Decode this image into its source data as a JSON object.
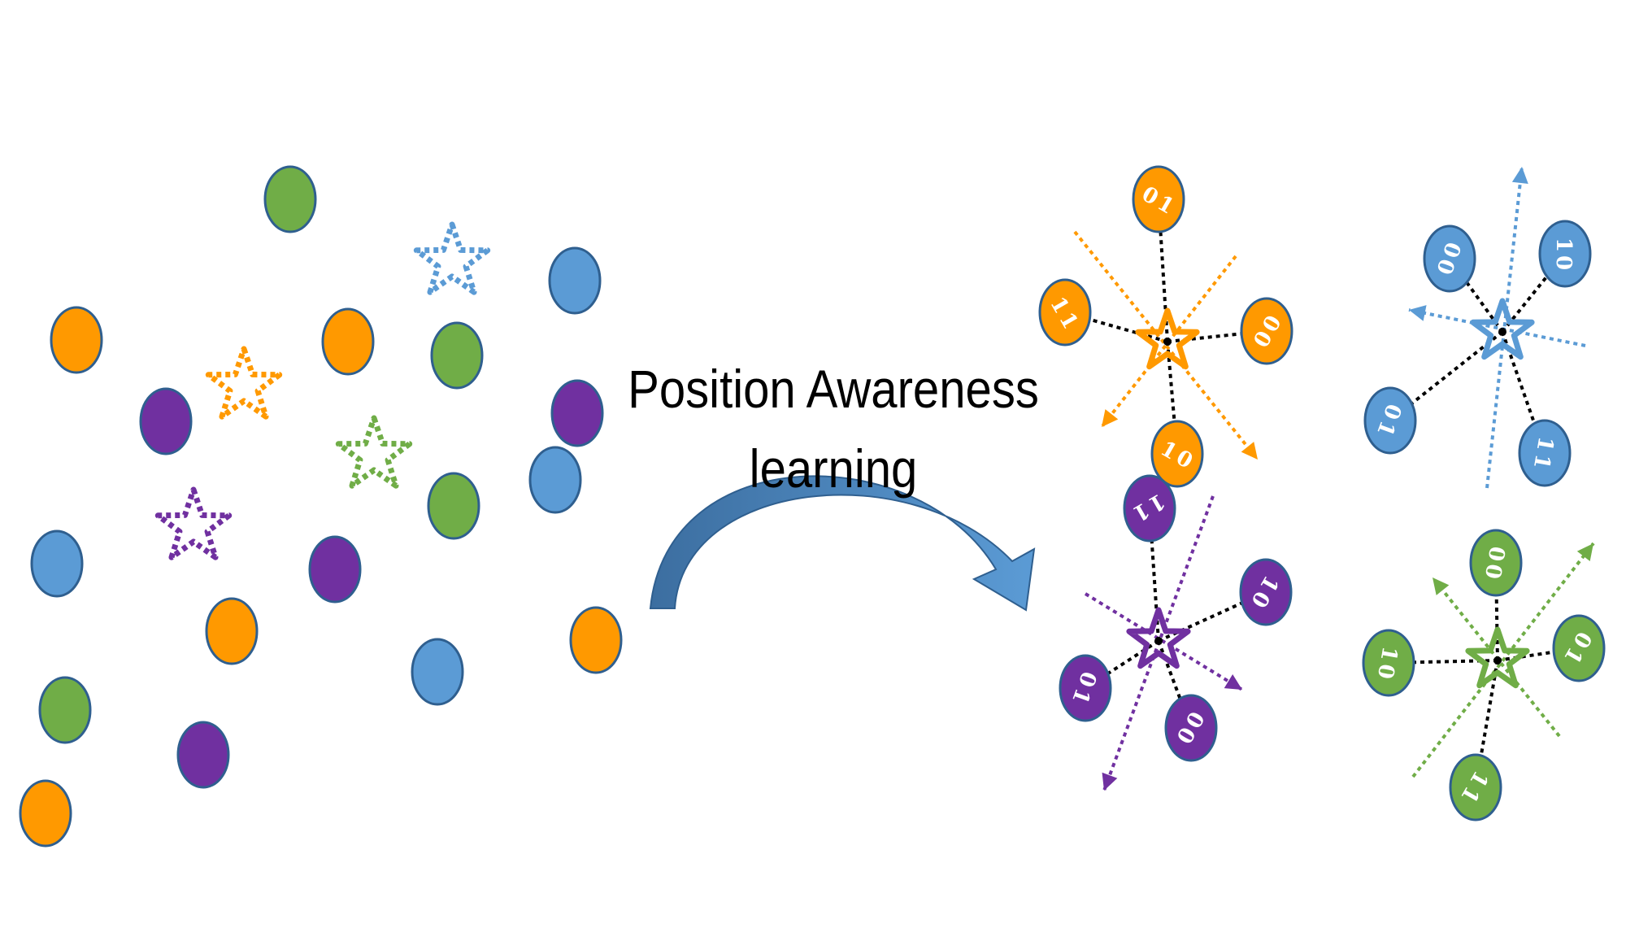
{
  "colors": {
    "orange": "#FF9900",
    "blue": "#5B9BD5",
    "green": "#70AD47",
    "purple": "#7030A0",
    "outline": "#2F5F8F",
    "arrow_light": "#5B9BD5",
    "arrow_dark": "#3C6EA0"
  },
  "caption": {
    "line1": "Position Awareness",
    "line2": "learning"
  },
  "left_scatter": {
    "circles": [
      "green",
      "orange",
      "orange",
      "green",
      "blue",
      "purple",
      "purple",
      "blue",
      "green",
      "blue",
      "purple",
      "orange",
      "blue",
      "green",
      "purple",
      "orange",
      "orange"
    ],
    "stars": [
      "blue",
      "orange",
      "green",
      "purple"
    ]
  },
  "clusters": [
    {
      "color": "orange",
      "codes": [
        {
          "bits": [
            "0",
            "1"
          ],
          "rot": 30
        },
        {
          "bits": [
            "1",
            "1"
          ],
          "rot": 60
        },
        {
          "bits": [
            "0",
            "0"
          ],
          "rot": -60
        },
        {
          "bits": [
            "1",
            "0"
          ],
          "rot": 30
        }
      ]
    },
    {
      "color": "blue",
      "codes": [
        {
          "bits": [
            "0",
            "0"
          ],
          "rot": 110
        },
        {
          "bits": [
            "1",
            "0"
          ],
          "rot": 90
        },
        {
          "bits": [
            "0",
            "1"
          ],
          "rot": 110
        },
        {
          "bits": [
            "1",
            "1"
          ],
          "rot": 100
        }
      ]
    },
    {
      "color": "purple",
      "codes": [
        {
          "bits": [
            "1",
            "1"
          ],
          "rot": 150
        },
        {
          "bits": [
            "1",
            "0"
          ],
          "rot": 120
        },
        {
          "bits": [
            "0",
            "1"
          ],
          "rot": 110
        },
        {
          "bits": [
            "0",
            "0"
          ],
          "rot": 120
        }
      ]
    },
    {
      "color": "green",
      "codes": [
        {
          "bits": [
            "0",
            "0"
          ],
          "rot": 100
        },
        {
          "bits": [
            "0",
            "1"
          ],
          "rot": 120
        },
        {
          "bits": [
            "1",
            "0"
          ],
          "rot": 100
        },
        {
          "bits": [
            "1",
            "1"
          ],
          "rot": 120
        }
      ]
    }
  ]
}
